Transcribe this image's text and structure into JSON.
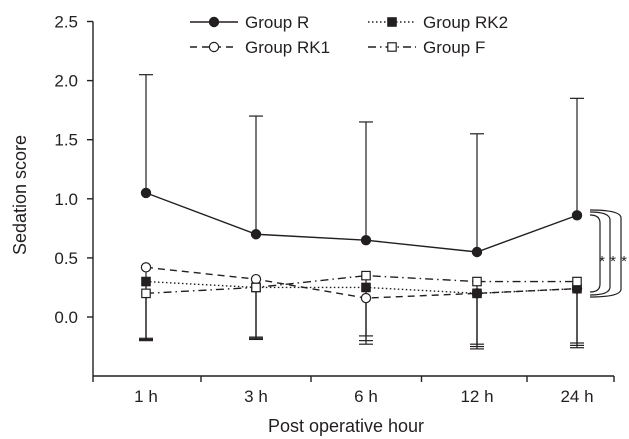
{
  "chart_data": {
    "type": "line",
    "title": "",
    "xlabel": "Post operative hour",
    "ylabel": "Sedation score",
    "categories": [
      "1 h",
      "3 h",
      "6 h",
      "12 h",
      "24 h"
    ],
    "ylim": [
      -0.3,
      2.5
    ],
    "yticks": [
      "2.5",
      "2.0",
      "1.5",
      "1.0",
      "0.5",
      "0.0"
    ],
    "ytick_values": [
      2.5,
      2.0,
      1.5,
      1.0,
      0.5,
      0.0
    ],
    "grid": false,
    "legend_position": "top",
    "series": [
      {
        "name": "Group R",
        "marker": "filled-circle",
        "line": "solid",
        "values": [
          1.05,
          0.7,
          0.65,
          0.55,
          0.86
        ],
        "error_upper": [
          2.05,
          1.7,
          1.65,
          1.55,
          1.85
        ],
        "error_lower": null
      },
      {
        "name": "Group RK1",
        "marker": "open-circle",
        "line": "dashed",
        "values": [
          0.42,
          0.32,
          0.16,
          0.2,
          0.24
        ],
        "error_upper": null,
        "error_lower": [
          -0.18,
          -0.17,
          -0.2,
          -0.25,
          -0.22
        ]
      },
      {
        "name": "Group RK2",
        "marker": "filled-square",
        "line": "dotted",
        "values": [
          0.3,
          0.25,
          0.25,
          0.2,
          0.24
        ],
        "error_upper": null,
        "error_lower": [
          -0.2,
          -0.19,
          -0.23,
          -0.27,
          -0.26
        ]
      },
      {
        "name": "Group F",
        "marker": "open-square",
        "line": "dashdot",
        "values": [
          0.2,
          0.25,
          0.35,
          0.3,
          0.3
        ],
        "error_upper": null,
        "error_lower": [
          -0.19,
          -0.18,
          -0.16,
          -0.23,
          -0.24
        ]
      }
    ],
    "annotations": [
      {
        "text": "*",
        "at_category": "24 h"
      },
      {
        "text": "*",
        "at_category": "24 h"
      },
      {
        "text": "*",
        "at_category": "24 h"
      }
    ]
  }
}
